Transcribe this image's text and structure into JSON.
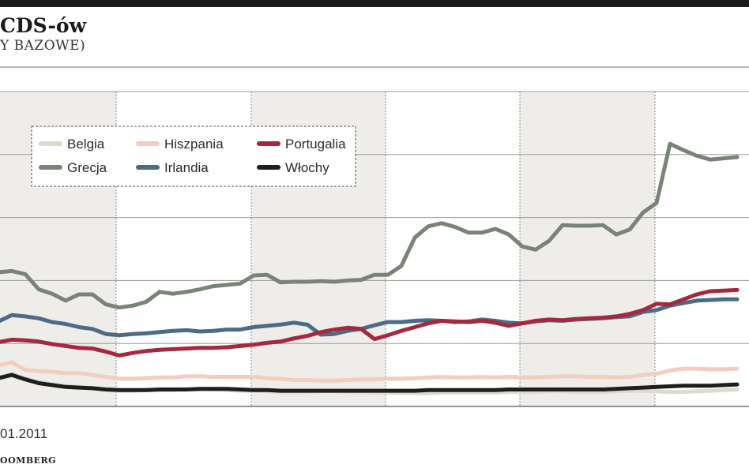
{
  "header": {
    "title": "CDS-ów",
    "subtitle": "Y BAZOWE)"
  },
  "footer": {
    "x_start_label": "01.2011",
    "source": "OOMBERG"
  },
  "colors": {
    "belgia": "#dedad0",
    "grecja": "#7a8377",
    "hiszpania": "#f2cdc0",
    "portugalia": "#a5283c",
    "irlandia": "#4b6b86",
    "wlochy": "#1e1e1e",
    "band": "#efede9"
  },
  "chart_data": {
    "type": "line",
    "title": "CDS-ów",
    "subtitle": "Y BAZOWE)",
    "x_start_label": "01.2011",
    "x": [
      0,
      1,
      2,
      3,
      4,
      5,
      6,
      7,
      8,
      9,
      10,
      11,
      12,
      13,
      14,
      15,
      16,
      17,
      18,
      19,
      20,
      21,
      22,
      23,
      24,
      25,
      26,
      27,
      28,
      29,
      30,
      31,
      32,
      33,
      34,
      35,
      36,
      37,
      38,
      39,
      40,
      41,
      42,
      43,
      44,
      45,
      46,
      47,
      48,
      49,
      50,
      51,
      52,
      53,
      54,
      55
    ],
    "ylim": [
      0,
      5
    ],
    "grid": true,
    "legend_position": "top-left",
    "series": [
      {
        "name": "Belgia",
        "values": [
          0.45,
          0.52,
          0.44,
          0.39,
          0.35,
          0.33,
          0.31,
          0.29,
          0.26,
          0.25,
          0.25,
          0.26,
          0.26,
          0.26,
          0.27,
          0.27,
          0.27,
          0.26,
          0.25,
          0.25,
          0.24,
          0.23,
          0.23,
          0.23,
          0.24,
          0.24,
          0.23,
          0.23,
          0.22,
          0.22,
          0.21,
          0.21,
          0.21,
          0.22,
          0.22,
          0.22,
          0.22,
          0.22,
          0.23,
          0.23,
          0.23,
          0.24,
          0.24,
          0.23,
          0.23,
          0.23,
          0.24,
          0.25,
          0.25,
          0.24,
          0.23,
          0.23,
          0.24,
          0.25,
          0.26,
          0.27
        ]
      },
      {
        "name": "Grecja",
        "values": [
          2.13,
          2.15,
          2.1,
          1.86,
          1.79,
          1.68,
          1.78,
          1.78,
          1.62,
          1.57,
          1.6,
          1.66,
          1.82,
          1.79,
          1.82,
          1.86,
          1.91,
          1.93,
          1.95,
          2.08,
          2.09,
          1.97,
          1.98,
          1.98,
          1.99,
          1.98,
          2.0,
          2.01,
          2.09,
          2.09,
          2.23,
          2.68,
          2.86,
          2.91,
          2.85,
          2.76,
          2.76,
          2.82,
          2.73,
          2.54,
          2.49,
          2.63,
          2.88,
          2.87,
          2.87,
          2.88,
          2.73,
          2.81,
          3.08,
          3.23,
          4.17,
          4.07,
          3.98,
          3.92,
          3.94,
          3.96
        ]
      },
      {
        "name": "Hiszpania",
        "values": [
          0.65,
          0.7,
          0.58,
          0.56,
          0.55,
          0.53,
          0.53,
          0.5,
          0.47,
          0.44,
          0.44,
          0.45,
          0.46,
          0.46,
          0.48,
          0.48,
          0.47,
          0.47,
          0.47,
          0.47,
          0.45,
          0.44,
          0.42,
          0.42,
          0.41,
          0.41,
          0.42,
          0.43,
          0.43,
          0.44,
          0.44,
          0.45,
          0.46,
          0.47,
          0.46,
          0.46,
          0.47,
          0.46,
          0.47,
          0.46,
          0.46,
          0.47,
          0.48,
          0.48,
          0.47,
          0.47,
          0.46,
          0.47,
          0.5,
          0.52,
          0.57,
          0.6,
          0.6,
          0.59,
          0.59,
          0.6
        ]
      },
      {
        "name": "Portugalia",
        "values": [
          1.02,
          1.06,
          1.05,
          1.03,
          0.99,
          0.96,
          0.93,
          0.92,
          0.87,
          0.81,
          0.85,
          0.88,
          0.9,
          0.91,
          0.92,
          0.93,
          0.93,
          0.94,
          0.96,
          0.98,
          1.01,
          1.03,
          1.08,
          1.12,
          1.18,
          1.22,
          1.25,
          1.23,
          1.07,
          1.13,
          1.2,
          1.26,
          1.32,
          1.36,
          1.35,
          1.34,
          1.36,
          1.33,
          1.28,
          1.32,
          1.36,
          1.38,
          1.37,
          1.39,
          1.4,
          1.41,
          1.43,
          1.47,
          1.53,
          1.63,
          1.62,
          1.7,
          1.78,
          1.83,
          1.84,
          1.85
        ]
      },
      {
        "name": "Irlandia",
        "values": [
          1.35,
          1.45,
          1.43,
          1.4,
          1.34,
          1.31,
          1.26,
          1.23,
          1.15,
          1.13,
          1.15,
          1.16,
          1.18,
          1.2,
          1.21,
          1.19,
          1.2,
          1.22,
          1.22,
          1.26,
          1.28,
          1.3,
          1.33,
          1.3,
          1.14,
          1.15,
          1.2,
          1.23,
          1.29,
          1.34,
          1.34,
          1.36,
          1.37,
          1.36,
          1.34,
          1.35,
          1.38,
          1.36,
          1.33,
          1.32,
          1.35,
          1.37,
          1.36,
          1.38,
          1.39,
          1.4,
          1.42,
          1.43,
          1.5,
          1.53,
          1.6,
          1.64,
          1.68,
          1.69,
          1.7,
          1.7
        ]
      },
      {
        "name": "Włochy",
        "values": [
          0.45,
          0.5,
          0.43,
          0.37,
          0.34,
          0.31,
          0.3,
          0.29,
          0.27,
          0.26,
          0.26,
          0.26,
          0.27,
          0.27,
          0.27,
          0.28,
          0.28,
          0.28,
          0.27,
          0.26,
          0.26,
          0.25,
          0.25,
          0.25,
          0.25,
          0.25,
          0.25,
          0.25,
          0.25,
          0.25,
          0.25,
          0.25,
          0.26,
          0.26,
          0.26,
          0.26,
          0.26,
          0.26,
          0.27,
          0.27,
          0.27,
          0.27,
          0.27,
          0.27,
          0.27,
          0.27,
          0.28,
          0.29,
          0.3,
          0.31,
          0.32,
          0.33,
          0.33,
          0.33,
          0.34,
          0.35
        ]
      }
    ]
  }
}
